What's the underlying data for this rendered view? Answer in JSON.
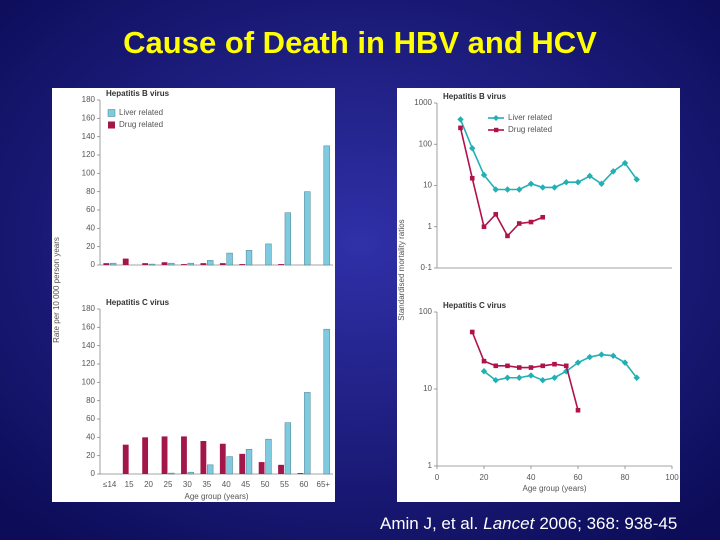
{
  "title": "Cause of Death in HBV and HCV",
  "citation": {
    "authors": "Amin J, et al.",
    "journal": "Lancet",
    "details": "2006; 368: 938-45"
  },
  "chart_data": [
    {
      "type": "bar",
      "title": "Hepatitis B virus",
      "ylabel": "Rate per 10 000 person years",
      "ylim": [
        0,
        180
      ],
      "yticks": [
        0,
        20,
        40,
        60,
        80,
        100,
        120,
        140,
        160,
        180
      ],
      "series": [
        {
          "name": "Liver related",
          "color": "#7ecbe0",
          "values": [
            2,
            0,
            1,
            2,
            2,
            5,
            13,
            16,
            23,
            57,
            80,
            130
          ]
        },
        {
          "name": "Drug related",
          "color": "#a3164a",
          "values": [
            2,
            7,
            2,
            3,
            1,
            2,
            2,
            1,
            0,
            1,
            0,
            0
          ]
        }
      ]
    },
    {
      "type": "bar",
      "title": "Hepatitis C virus",
      "xlabel": "Age group (years)",
      "categories": [
        "≤14",
        "15",
        "20",
        "25",
        "30",
        "35",
        "40",
        "45",
        "50",
        "55",
        "60",
        "65+"
      ],
      "ylim": [
        0,
        180
      ],
      "yticks": [
        0,
        20,
        40,
        60,
        80,
        100,
        120,
        140,
        160,
        180
      ],
      "series": [
        {
          "name": "Liver related",
          "color": "#7ecbe0",
          "values": [
            0,
            0,
            0,
            1,
            2,
            10,
            19,
            27,
            38,
            56,
            89,
            158
          ]
        },
        {
          "name": "Drug related",
          "color": "#a3164a",
          "values": [
            0,
            32,
            40,
            41,
            41,
            36,
            33,
            22,
            13,
            10,
            1,
            0
          ]
        }
      ]
    },
    {
      "type": "line",
      "title": "Hepatitis B virus",
      "ylabel": "Standardised mortality ratios",
      "yscale": "log",
      "xlim": [
        0,
        100
      ],
      "ylim": [
        0.1,
        1000
      ],
      "yticks": [
        {
          "value": 0.1,
          "label": "0·1"
        },
        1,
        10,
        100,
        1000
      ],
      "series": [
        {
          "name": "Liver related",
          "color": "#22b0b5",
          "marker": "diamond",
          "x": [
            10,
            15,
            20,
            25,
            30,
            35,
            40,
            45,
            50,
            55,
            60,
            65,
            70,
            75,
            80,
            85
          ],
          "values": [
            400,
            80,
            18,
            8,
            8,
            8,
            11,
            9,
            9,
            12,
            12,
            17,
            11,
            22,
            35,
            14
          ]
        },
        {
          "name": "Drug related",
          "color": "#b0124b",
          "marker": "square",
          "x": [
            10,
            15,
            20,
            25,
            30,
            35,
            40,
            45
          ],
          "values": [
            250,
            15,
            1,
            2,
            0.6,
            1.2,
            1.3,
            1.7
          ]
        }
      ]
    },
    {
      "type": "line",
      "title": "Hepatitis C virus",
      "xlabel": "Age group (years)",
      "yscale": "log",
      "xlim": [
        0,
        100
      ],
      "xticks": [
        0,
        20,
        40,
        60,
        80,
        100
      ],
      "ylim": [
        1,
        100
      ],
      "yticks": [
        1,
        10,
        100
      ],
      "series": [
        {
          "color": "#22b0b5",
          "marker": "diamond",
          "x": [
            20,
            25,
            30,
            35,
            40,
            45,
            50,
            55,
            60,
            65,
            70,
            75,
            80,
            85
          ],
          "values": [
            17,
            13,
            14,
            14,
            15,
            13,
            14,
            17,
            22,
            26,
            28,
            27,
            22,
            14
          ]
        },
        {
          "color": "#b0124b",
          "marker": "square",
          "x": [
            15,
            20,
            25,
            30,
            35,
            40,
            45,
            50,
            55,
            60
          ],
          "values": [
            55,
            23,
            20,
            20,
            19,
            19,
            20,
            21,
            20,
            5.3
          ]
        }
      ]
    }
  ]
}
